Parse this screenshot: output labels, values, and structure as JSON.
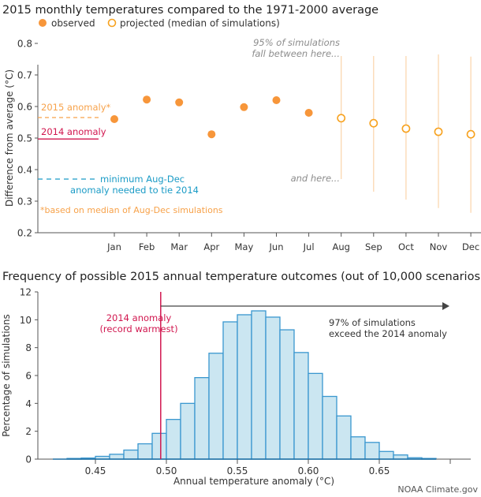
{
  "colors": {
    "observed": "#f7963a",
    "projected": "#f7a21f",
    "range": "#fbd7b0",
    "anomaly2015": "#f7a24a",
    "anomaly2014": "#d1174f",
    "minNeeded": "#1a9bc6",
    "annotationGray": "#8c8c8c",
    "axis": "#555555",
    "barFill": "#cbe6f1",
    "barStroke": "#3a97cf",
    "arrow": "#444444",
    "text": "#222222"
  },
  "chart_data": [
    {
      "type": "scatter",
      "title": "2015 monthly temperatures compared to the 1971-2000 average",
      "xlabel": "",
      "ylabel": "Difference from average (°C)",
      "ylim": [
        0.2,
        0.8
      ],
      "yticks": [
        "0.2",
        "0.3",
        "0.4",
        "0.5",
        "0.6",
        "0.7",
        "0.8"
      ],
      "categories": [
        "Jan",
        "Feb",
        "Mar",
        "Apr",
        "May",
        "Jun",
        "Jul",
        "Aug",
        "Sep",
        "Oct",
        "Nov",
        "Dec"
      ],
      "legend": {
        "position": "top-left",
        "entries": [
          "observed",
          "projected (median of simulations)"
        ]
      },
      "series": [
        {
          "name": "observed",
          "months": [
            "Jan",
            "Feb",
            "Mar",
            "Apr",
            "May",
            "Jun",
            "Jul"
          ],
          "values": [
            0.56,
            0.622,
            0.613,
            0.512,
            0.598,
            0.62,
            0.58
          ]
        },
        {
          "name": "projected (median of simulations)",
          "months": [
            "Aug",
            "Sep",
            "Oct",
            "Nov",
            "Dec"
          ],
          "values": [
            0.563,
            0.547,
            0.53,
            0.52,
            0.512
          ],
          "range_high": [
            0.76,
            0.76,
            0.76,
            0.765,
            0.758
          ],
          "range_low": [
            0.37,
            0.33,
            0.305,
            0.278,
            0.263
          ]
        }
      ],
      "reference_lines": [
        {
          "name": "2015 anomaly",
          "label": "2015 anomaly*",
          "value": 0.565,
          "style": "dashed"
        },
        {
          "name": "2014 anomaly",
          "label": "2014 anomaly",
          "value": 0.497,
          "style": "solid"
        },
        {
          "name": "minimum Aug-Dec",
          "label_lines": [
            "minimum Aug-Dec",
            "anomaly needed to tie 2014"
          ],
          "value": 0.37,
          "style": "dashed"
        }
      ],
      "annotations": {
        "range_top": [
          "95% of simulations",
          "fall between here..."
        ],
        "range_bottom": "and here...",
        "footnote": "*based on median of Aug-Dec simulations"
      }
    },
    {
      "type": "bar",
      "title": "Frequency of possible 2015 annual temperature outcomes (out of 10,000 scenarios)",
      "xlabel": "Annual temperature anomaly (°C)",
      "ylabel": "Percentage of simulations",
      "xlim": [
        0.42,
        0.7
      ],
      "ylim": [
        0,
        12
      ],
      "xticks": [
        "0.45",
        "0.50",
        "0.55",
        "0.60",
        "0.65"
      ],
      "xtick_values": [
        0.45,
        0.5,
        0.55,
        0.6,
        0.65
      ],
      "yticks": [
        "0",
        "2",
        "4",
        "6",
        "8",
        "10",
        "12"
      ],
      "bin_width": 0.01,
      "bin_starts": [
        0.43,
        0.44,
        0.45,
        0.46,
        0.47,
        0.48,
        0.49,
        0.5,
        0.51,
        0.52,
        0.53,
        0.54,
        0.55,
        0.56,
        0.57,
        0.58,
        0.59,
        0.6,
        0.61,
        0.62,
        0.63,
        0.64,
        0.65,
        0.66,
        0.67,
        0.68
      ],
      "values": [
        0.05,
        0.08,
        0.2,
        0.35,
        0.65,
        1.1,
        1.85,
        2.85,
        4.0,
        5.85,
        7.6,
        9.85,
        10.36,
        10.64,
        10.19,
        9.28,
        7.65,
        6.15,
        4.5,
        3.1,
        1.6,
        1.2,
        0.55,
        0.3,
        0.1,
        0.05
      ],
      "reference_line": {
        "value": 0.496,
        "label_lines": [
          "2014 anomaly",
          "(record warmest)"
        ]
      },
      "annotation_lines": [
        "97% of simulations",
        "exceed the 2014 anomaly"
      ]
    }
  ],
  "credit": "NOAA Climate.gov"
}
